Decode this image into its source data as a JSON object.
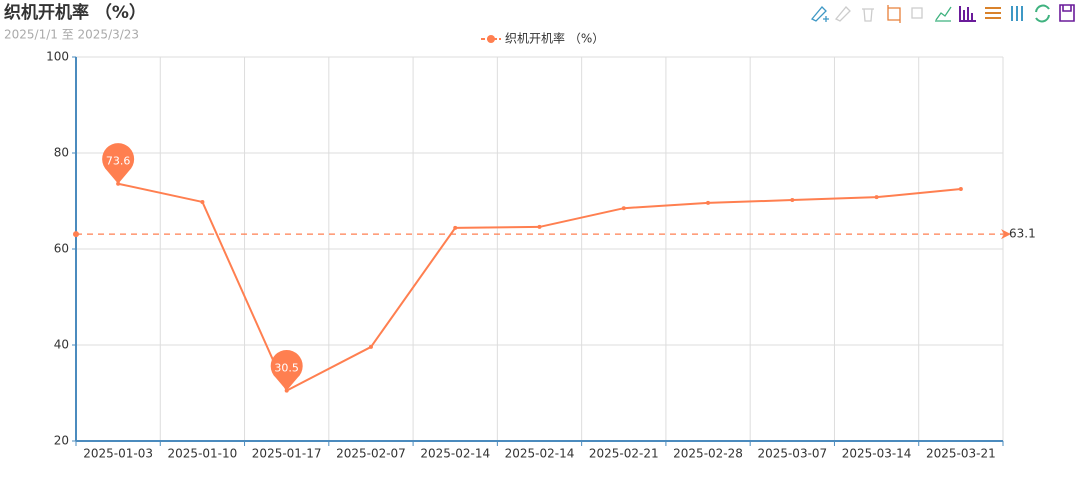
{
  "chart_data": {
    "type": "line",
    "title": "织机开机率 （%）",
    "subtitle": "2025/1/1 至 2025/3/23",
    "categories": [
      "2025-01-03",
      "2025-01-10",
      "2025-01-17",
      "2025-02-07",
      "2025-02-14",
      "2025-02-14",
      "2025-02-21",
      "2025-02-28",
      "2025-03-07",
      "2025-03-14",
      "2025-03-21"
    ],
    "series": [
      {
        "name": "织机开机率 （%）",
        "color": "#ff7f50",
        "values": [
          73.6,
          69.8,
          30.5,
          39.6,
          64.4,
          64.6,
          68.5,
          69.6,
          70.2,
          70.8,
          72.5
        ]
      }
    ],
    "average": 63.1,
    "ylim": [
      20,
      100
    ],
    "yticks": [
      20,
      40,
      60,
      80,
      100
    ],
    "grid": true
  }
}
